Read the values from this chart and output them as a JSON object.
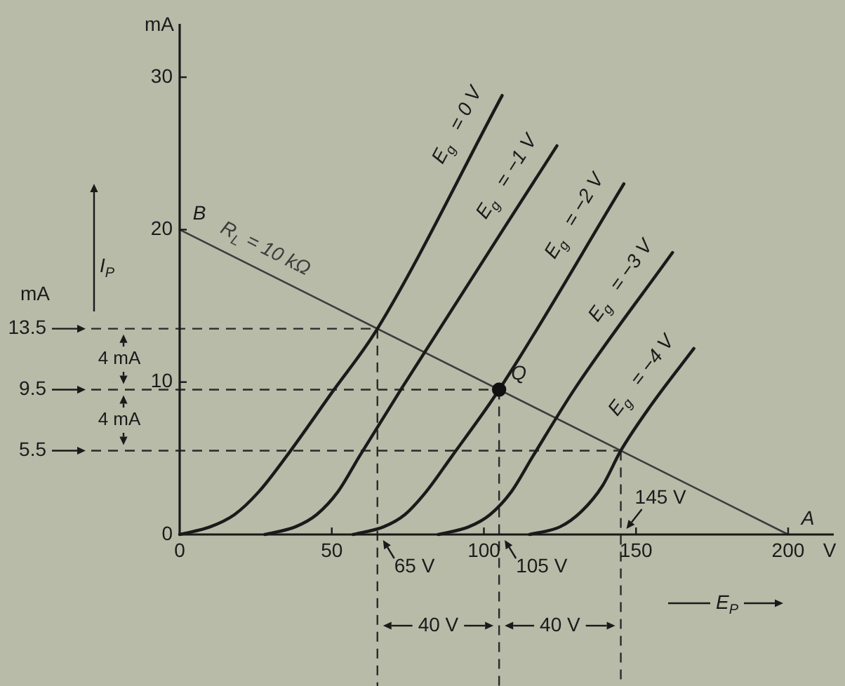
{
  "chart_data": {
    "type": "line",
    "xlabel": "V",
    "ylabel": "mA",
    "xlim": [
      0,
      215
    ],
    "ylim": [
      0,
      33.5
    ],
    "xticks": [
      0,
      50,
      100,
      150,
      200
    ],
    "yticks": [
      0,
      10,
      20,
      30
    ],
    "series": [
      {
        "name": "E$_{g}$ = 0 V",
        "color": "#1a1a1a",
        "x": [
          0,
          10,
          18,
          26,
          35,
          50,
          65,
          106
        ],
        "values": [
          0,
          0.5,
          1.3,
          2.8,
          5.1,
          9.3,
          13.5,
          28.8
        ]
      },
      {
        "name": "E$_{g}$ = −1 V",
        "color": "#1a1a1a",
        "x": [
          28,
          38,
          45,
          52,
          59,
          73,
          124
        ],
        "values": [
          0,
          0.5,
          1.3,
          2.8,
          5.1,
          9.6,
          25.5
        ]
      },
      {
        "name": "E$_{g}$ = −2 V",
        "color": "#1a1a1a",
        "x": [
          57,
          67,
          74,
          81,
          89,
          105,
          146
        ],
        "values": [
          0,
          0.5,
          1.3,
          2.8,
          5.0,
          9.5,
          23.0
        ]
      },
      {
        "name": "E$_{g}$ = −3 V",
        "color": "#1a1a1a",
        "x": [
          85,
          95,
          102,
          109,
          116,
          130,
          162
        ],
        "values": [
          0,
          0.5,
          1.3,
          2.8,
          5.1,
          9.6,
          18.5
        ]
      },
      {
        "name": "E$_{g}$ = −4 V",
        "color": "#1a1a1a",
        "x": [
          115,
          125,
          132,
          139,
          145,
          155,
          169
        ],
        "values": [
          0,
          0.5,
          1.5,
          3.2,
          5.5,
          8.5,
          12.2
        ]
      },
      {
        "name": "R$_{L}$ = 10 kΩ",
        "color": "#3c3c3c",
        "x": [
          0,
          200
        ],
        "values": [
          20,
          0
        ]
      },
      {
        "type": "scatter",
        "color": "#111111",
        "marker": "circle",
        "x": [
          105
        ],
        "values": [
          9.5
        ]
      }
    ],
    "ref_lines": [
      {
        "axis": "y",
        "value": 13.5,
        "label": "13.5",
        "line_style": "dashed",
        "color": "#2a2a2a"
      },
      {
        "axis": "y",
        "value": 9.5,
        "label": "9.5",
        "line_style": "dashed",
        "color": "#2a2a2a"
      },
      {
        "axis": "y",
        "value": 5.5,
        "label": "5.5",
        "line_style": "dashed",
        "color": "#2a2a2a"
      },
      {
        "axis": "x",
        "value": 65,
        "label": "65 V",
        "line_style": "dashed",
        "color": "#2a2a2a"
      },
      {
        "axis": "x",
        "value": 105,
        "label": "105 V",
        "line_style": "dashed",
        "color": "#2a2a2a"
      },
      {
        "axis": "x",
        "value": 145,
        "label": "145 V",
        "line_style": "dashed",
        "color": "#2a2a2a"
      }
    ],
    "annotations": [
      "I$_{P}$",
      "E$_{P}$",
      "mA",
      "4 mA",
      "4 mA",
      "40 V",
      "40 V",
      {
        "text": "B",
        "x": 0,
        "y": 20
      },
      {
        "text": "A",
        "x": 200,
        "y": 0
      },
      {
        "text": "Q",
        "x": 105,
        "y": 9.5
      }
    ]
  }
}
